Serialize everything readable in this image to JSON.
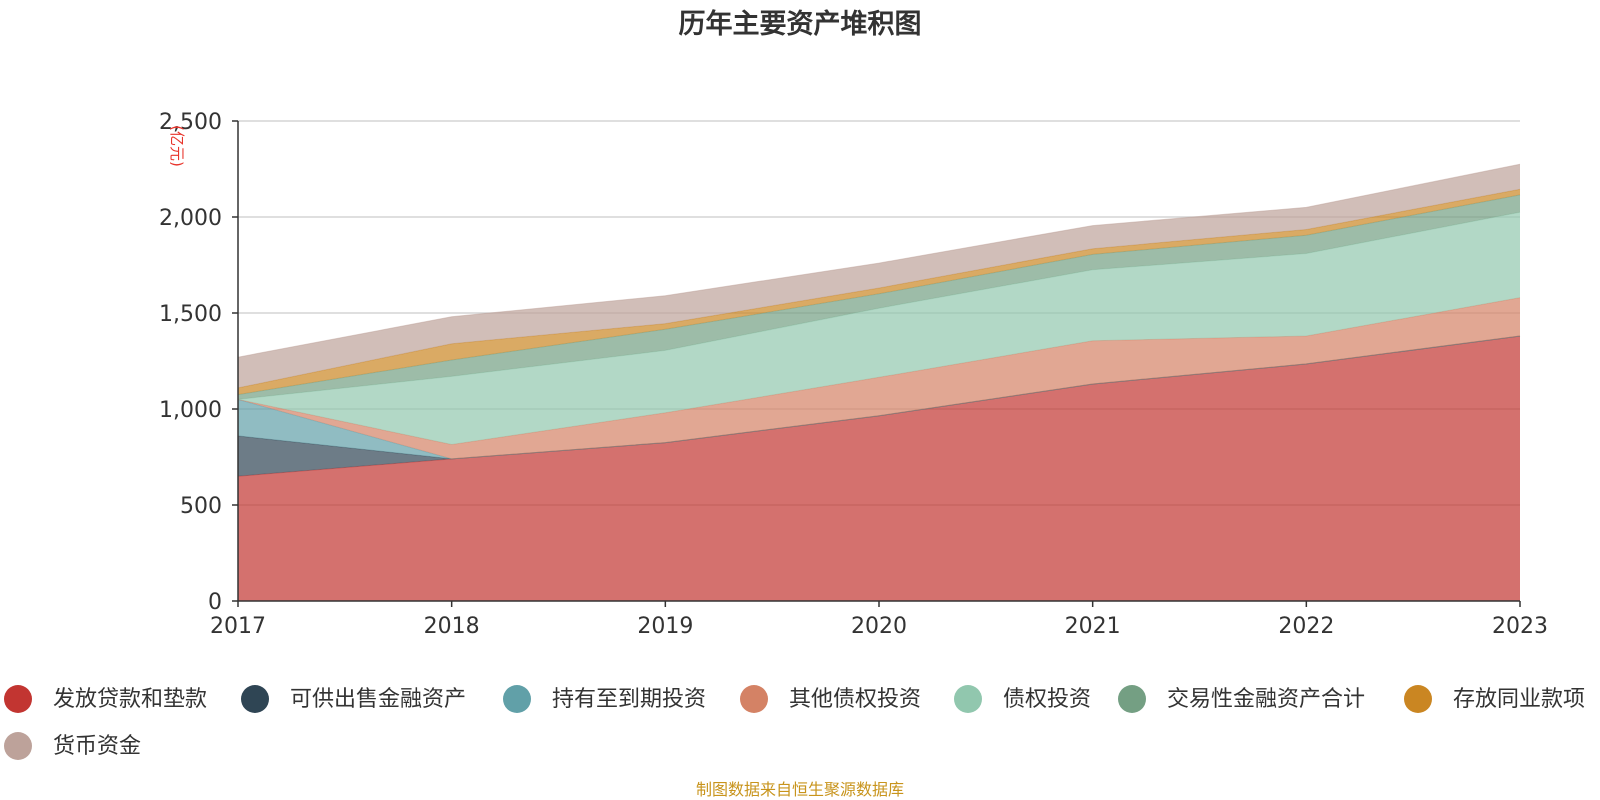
{
  "chart_data": {
    "type": "area",
    "stacked": true,
    "title": "历年主要资产堆积图",
    "ylabel": "(亿元)",
    "xlabel": "",
    "x": [
      "2017",
      "2018",
      "2019",
      "2020",
      "2021",
      "2022",
      "2023"
    ],
    "ylim": [
      0,
      2500
    ],
    "yticks": [
      0,
      500,
      1000,
      1500,
      2000,
      2500
    ],
    "ytick_labels": [
      "0",
      "500",
      "1,000",
      "1,500",
      "2,000",
      "2,500"
    ],
    "grid": true,
    "legend_position": "bottom",
    "series": [
      {
        "name": "发放贷款和垫款",
        "color": "#c23531",
        "values": [
          650,
          740,
          825,
          965,
          1130,
          1235,
          1380
        ]
      },
      {
        "name": "可供出售金融资产",
        "color": "#2f4554",
        "values": [
          210,
          0,
          0,
          0,
          0,
          0,
          0
        ]
      },
      {
        "name": "持有至到期投资",
        "color": "#61a0a8",
        "values": [
          190,
          0,
          0,
          0,
          0,
          0,
          0
        ]
      },
      {
        "name": "其他债权投资",
        "color": "#d48265",
        "values": [
          0,
          75,
          155,
          200,
          225,
          145,
          200
        ]
      },
      {
        "name": "债权投资",
        "color": "#91c7ae",
        "values": [
          0,
          355,
          325,
          360,
          370,
          430,
          445
        ]
      },
      {
        "name": "交易性金融资产合计",
        "color": "#749f83",
        "values": [
          25,
          85,
          110,
          75,
          80,
          95,
          90
        ]
      },
      {
        "name": "存放同业款项",
        "color": "#ca8622",
        "values": [
          35,
          85,
          30,
          30,
          30,
          30,
          30
        ]
      },
      {
        "name": "货币资金",
        "color": "#bda29a",
        "values": [
          160,
          140,
          145,
          130,
          120,
          115,
          130
        ]
      }
    ]
  },
  "footer": {
    "source": "制图数据来自恒生聚源数据库"
  }
}
